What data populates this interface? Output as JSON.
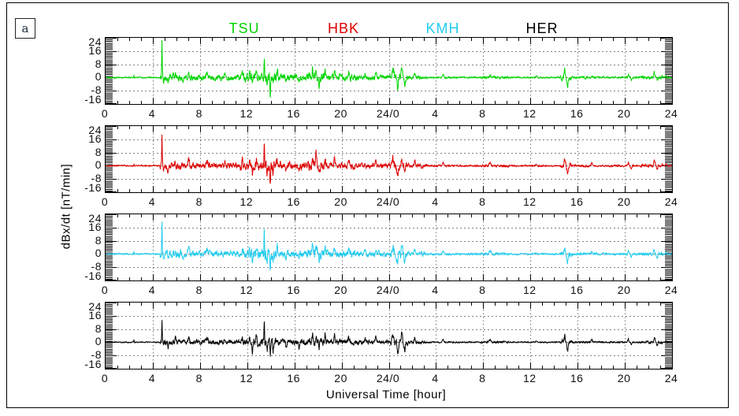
{
  "figure": {
    "panel_label": "a",
    "y_axis_label": "dBx/dt [nT/min]",
    "x_axis_label": "Universal Time [hour]"
  },
  "chart_data": {
    "type": "line",
    "layout": "4 vertically stacked panels sharing identical axes, one magnetometer station per panel, legend titles across the top",
    "xlabel": "Universal Time [hour]",
    "ylabel": "dBx/dt [nT/min]",
    "x_range_hours": [
      0,
      48
    ],
    "x_major_tick_step_hours": 4,
    "x_minor_tick_step_hours": 1,
    "x_tick_labels": [
      "0",
      "4",
      "8",
      "12",
      "16",
      "20",
      "24/0",
      "4",
      "8",
      "12",
      "16",
      "20",
      "24"
    ],
    "ylim": [
      -16,
      24
    ],
    "y_tick_values": [
      24,
      16,
      8,
      0,
      -8,
      -16
    ],
    "y_tick_labels": [
      "24",
      "16",
      "8",
      "0",
      "-8",
      "-16"
    ],
    "grid": "dotted vertical lines at each 4-hour major tick; dotted horizontal lines at y = 16, 8, 0, -8; dense minor-tick combs on left and right edges",
    "grid_color": "#777777",
    "stations": [
      {
        "name": "TSU",
        "color": "#00d500",
        "seed": 101,
        "noise_scale": 1.0,
        "main_spike": [
          4.78,
          22
        ],
        "storm_spike": [
          13.45,
          14.5
        ],
        "storm_dip": [
          13.95,
          -11
        ]
      },
      {
        "name": "HBK",
        "color": "#dd0000",
        "seed": 202,
        "noise_scale": 1.0,
        "main_spike": [
          4.78,
          19
        ],
        "storm_spike": [
          13.45,
          14
        ],
        "storm_dip": [
          13.95,
          -10
        ]
      },
      {
        "name": "KMH",
        "color": "#22ccee",
        "seed": 303,
        "noise_scale": 1.05,
        "main_spike": [
          4.78,
          21
        ],
        "storm_spike": [
          13.45,
          16
        ],
        "storm_dip": [
          13.95,
          -12
        ]
      },
      {
        "name": "HER",
        "color": "#000000",
        "seed": 404,
        "noise_scale": 0.8,
        "main_spike": [
          4.78,
          14
        ],
        "storm_spike": [
          13.45,
          13
        ],
        "storm_dip": [
          13.95,
          -9
        ]
      }
    ],
    "common_spikes": [
      [
        2.4,
        1.2,
        0.06
      ],
      [
        4.92,
        -3,
        0.05
      ],
      [
        5.3,
        -3.5,
        0.07
      ],
      [
        5.9,
        3,
        0.08
      ],
      [
        7.05,
        3.5,
        0.12
      ],
      [
        8.6,
        3,
        0.15
      ],
      [
        10.1,
        2.5,
        0.12
      ],
      [
        11.6,
        3,
        0.1
      ],
      [
        12.2,
        5,
        0.06
      ],
      [
        12.45,
        -6,
        0.06
      ],
      [
        12.8,
        4,
        0.08
      ],
      [
        13.7,
        -5,
        0.06
      ],
      [
        14.2,
        -6,
        0.07
      ],
      [
        14.55,
        4,
        0.08
      ],
      [
        15.3,
        -3,
        0.08
      ],
      [
        16.4,
        -4,
        0.07
      ],
      [
        17.55,
        6,
        0.1
      ],
      [
        17.85,
        6,
        0.1
      ],
      [
        18.1,
        -5,
        0.08
      ],
      [
        18.6,
        4,
        0.1
      ],
      [
        19.4,
        4,
        0.1
      ],
      [
        20.6,
        3,
        0.12
      ],
      [
        22.0,
        2.5,
        0.1
      ],
      [
        22.9,
        3,
        0.1
      ],
      [
        24.35,
        5,
        0.15
      ],
      [
        24.75,
        -6,
        0.12
      ],
      [
        25.1,
        6,
        0.1
      ],
      [
        25.35,
        -4,
        0.1
      ],
      [
        26.2,
        3,
        0.12
      ],
      [
        28.6,
        2,
        0.12
      ],
      [
        32.6,
        1.5,
        0.2
      ],
      [
        36.5,
        1,
        0.15
      ],
      [
        38.9,
        4,
        0.12
      ],
      [
        39.15,
        -5,
        0.12
      ],
      [
        41.2,
        1.5,
        0.12
      ],
      [
        44.3,
        2,
        0.1
      ],
      [
        44.55,
        -2,
        0.1
      ],
      [
        46.5,
        3,
        0.12
      ],
      [
        46.75,
        -2,
        0.1
      ],
      [
        47.5,
        1,
        0.08
      ]
    ],
    "noise_envelope_segments": [
      [
        0,
        4.6,
        0.35
      ],
      [
        4.6,
        6.6,
        2.0
      ],
      [
        6.6,
        11.4,
        1.5
      ],
      [
        11.4,
        13.3,
        2.4
      ],
      [
        13.3,
        14.6,
        3.0
      ],
      [
        14.6,
        17.1,
        1.8
      ],
      [
        17.1,
        18.6,
        2.8
      ],
      [
        18.6,
        21.5,
        1.7
      ],
      [
        21.5,
        24.1,
        1.3
      ],
      [
        24.1,
        25.6,
        2.2
      ],
      [
        25.6,
        27.2,
        1.0
      ],
      [
        27.2,
        31.8,
        0.45
      ],
      [
        31.8,
        34.2,
        0.65
      ],
      [
        34.2,
        38.55,
        0.4
      ],
      [
        38.55,
        39.5,
        1.6
      ],
      [
        39.5,
        41.5,
        0.6
      ],
      [
        41.5,
        45.4,
        0.5
      ],
      [
        45.4,
        47.2,
        0.8
      ],
      [
        47.2,
        48,
        0.4
      ]
    ]
  }
}
